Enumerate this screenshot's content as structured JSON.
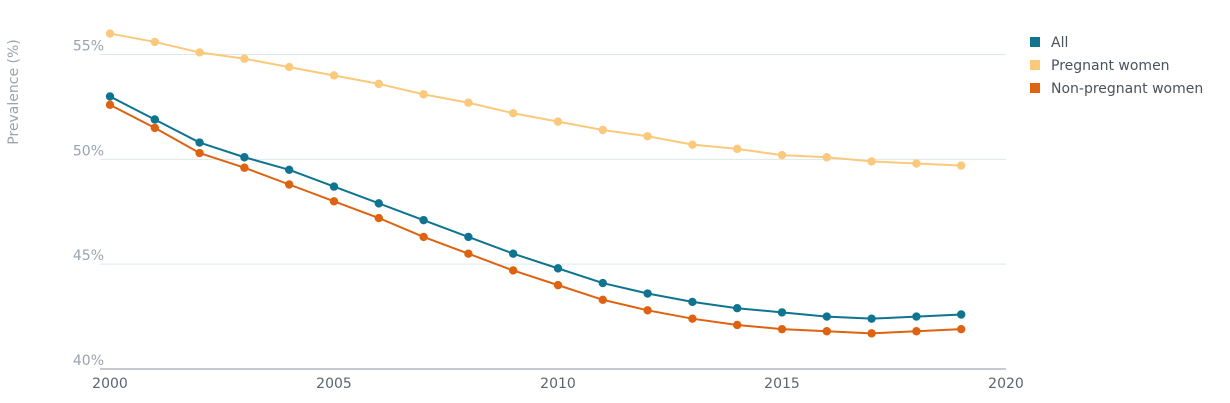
{
  "chart_data": {
    "type": "line",
    "xlabel": "",
    "ylabel": "Prevalence (%)",
    "xlim": [
      2000,
      2020
    ],
    "ylim": [
      40,
      56.5
    ],
    "x_ticks": [
      2000,
      2005,
      2010,
      2015,
      2020
    ],
    "x_tick_labels": [
      "2000",
      "2005",
      "2010",
      "2015",
      "2020"
    ],
    "y_ticks": [
      40,
      45,
      50,
      55
    ],
    "y_tick_labels": [
      "40%",
      "45%",
      "50%",
      "55%"
    ],
    "grid": "horizontal",
    "legend_position": "top-right",
    "x": [
      2000,
      2001,
      2002,
      2003,
      2004,
      2005,
      2006,
      2007,
      2008,
      2009,
      2010,
      2011,
      2012,
      2013,
      2014,
      2015,
      2016,
      2017,
      2018,
      2019
    ],
    "series": [
      {
        "name": "All",
        "color": "#0e7490",
        "values": [
          53.0,
          51.9,
          50.8,
          50.1,
          49.5,
          48.7,
          47.9,
          47.1,
          46.3,
          45.5,
          44.8,
          44.1,
          43.6,
          43.2,
          42.9,
          42.7,
          42.5,
          42.4,
          42.5,
          42.6
        ]
      },
      {
        "name": "Pregnant women",
        "color": "#fbc97c",
        "values": [
          56.0,
          55.6,
          55.1,
          54.8,
          54.4,
          54.0,
          53.6,
          53.1,
          52.7,
          52.2,
          51.8,
          51.4,
          51.1,
          50.7,
          50.5,
          50.2,
          50.1,
          49.9,
          49.8,
          49.7
        ]
      },
      {
        "name": "Non-pregnant women",
        "color": "#de6210",
        "values": [
          52.6,
          51.5,
          50.3,
          49.6,
          48.8,
          48.0,
          47.2,
          46.3,
          45.5,
          44.7,
          44.0,
          43.3,
          42.8,
          42.4,
          42.1,
          41.9,
          41.8,
          41.7,
          41.8,
          41.9
        ]
      }
    ]
  }
}
